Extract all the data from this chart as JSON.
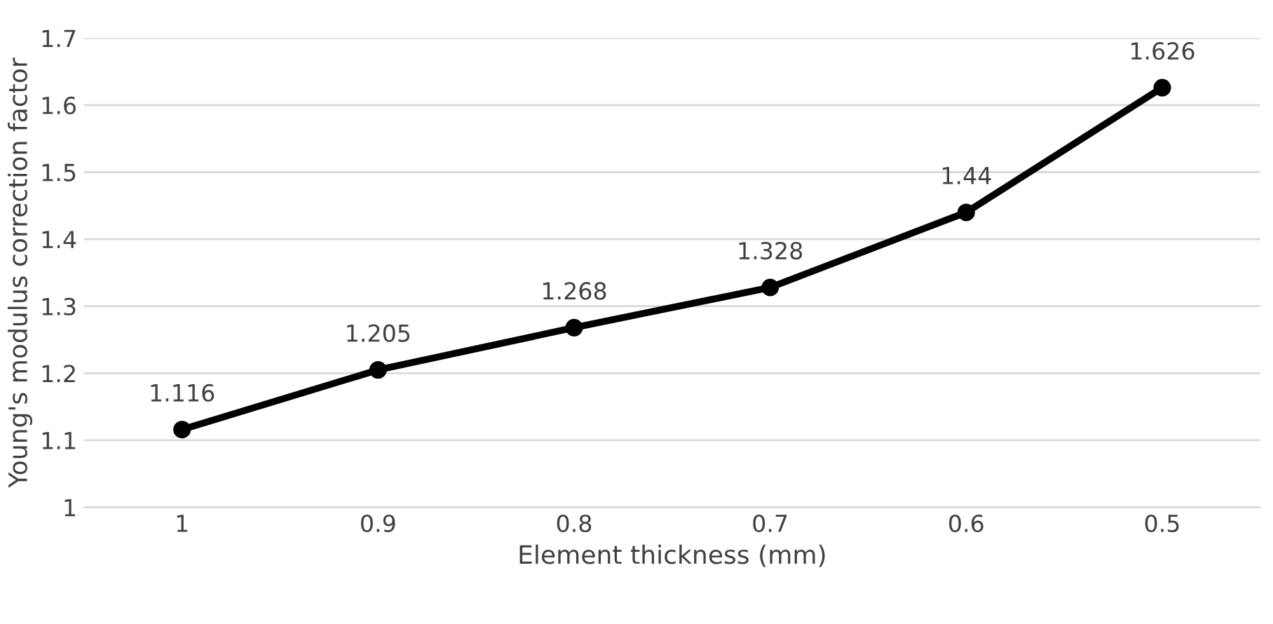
{
  "chart_data": {
    "type": "line",
    "xlabel": "Element thickness (mm)",
    "ylabel": "Young's modulus correction factor",
    "categories": [
      "1",
      "0.9",
      "0.8",
      "0.7",
      "0.6",
      "0.5"
    ],
    "series": [
      {
        "color": "#000000",
        "values": [
          1.116,
          1.205,
          1.268,
          1.328,
          1.44,
          1.626
        ]
      }
    ],
    "ylim": [
      1,
      1.7
    ],
    "yticks": [
      1,
      1.1,
      1.2,
      1.3,
      1.4,
      1.5,
      1.6,
      1.7
    ],
    "grid": "y",
    "marker": "circle",
    "line_style": "solid",
    "data_labels": true,
    "legend": false
  }
}
